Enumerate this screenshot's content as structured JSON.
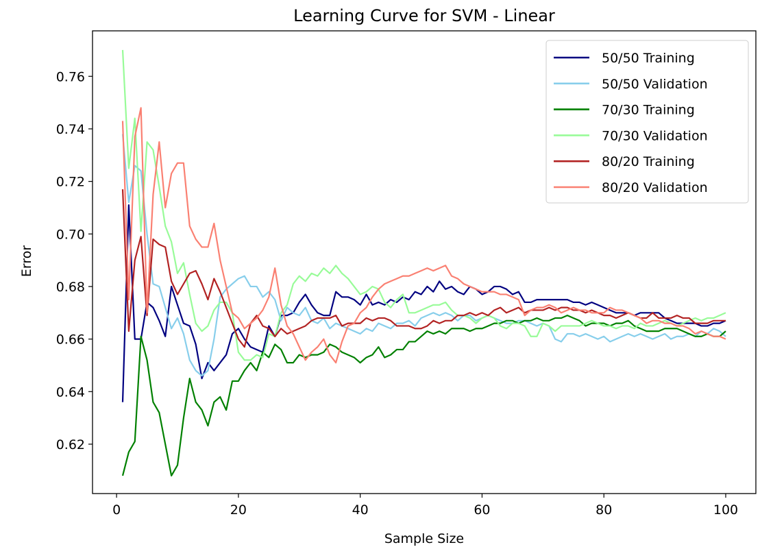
{
  "chart_data": {
    "type": "line",
    "title": "Learning Curve for SVM - Linear",
    "xlabel": "Sample Size",
    "ylabel": "Error",
    "xlim": [
      -3.95,
      104.95
    ],
    "ylim": [
      0.6012,
      0.7773
    ],
    "xticks": [
      0,
      20,
      40,
      60,
      80,
      100
    ],
    "yticks": [
      0.62,
      0.64,
      0.66,
      0.68,
      0.7,
      0.72,
      0.74,
      0.76
    ],
    "ytick_labels": [
      "0.62",
      "0.64",
      "0.66",
      "0.68",
      "0.70",
      "0.72",
      "0.74",
      "0.76"
    ],
    "grid": false,
    "legend_position": "top-right",
    "series": [
      {
        "name": "50/50 Training",
        "color": "#000080",
        "x": [
          1,
          2,
          3,
          4,
          5,
          6,
          7,
          8,
          9,
          10,
          11,
          12,
          13,
          14,
          15,
          16,
          17,
          18,
          19,
          20,
          21,
          22,
          23,
          24,
          25,
          26,
          27,
          28,
          29,
          30,
          31,
          32,
          33,
          34,
          35,
          36,
          37,
          38,
          39,
          40,
          41,
          42,
          43,
          44,
          45,
          46,
          47,
          48,
          49,
          50,
          51,
          52,
          53,
          54,
          55,
          56,
          57,
          58,
          59,
          60,
          61,
          62,
          63,
          64,
          65,
          66,
          67,
          68,
          69,
          70,
          71,
          72,
          73,
          74,
          75,
          76,
          77,
          78,
          79,
          80,
          81,
          82,
          83,
          84,
          85,
          86,
          87,
          88,
          89,
          90,
          91,
          92,
          93,
          94,
          95,
          96,
          97,
          98,
          99,
          100
        ],
        "y": [
          0.636,
          0.711,
          0.66,
          0.66,
          0.674,
          0.672,
          0.667,
          0.661,
          0.68,
          0.673,
          0.666,
          0.665,
          0.658,
          0.645,
          0.651,
          0.648,
          0.651,
          0.654,
          0.662,
          0.664,
          0.66,
          0.657,
          0.656,
          0.655,
          0.665,
          0.661,
          0.669,
          0.669,
          0.67,
          0.674,
          0.677,
          0.673,
          0.67,
          0.669,
          0.669,
          0.678,
          0.676,
          0.676,
          0.675,
          0.673,
          0.677,
          0.673,
          0.674,
          0.673,
          0.675,
          0.674,
          0.676,
          0.675,
          0.678,
          0.677,
          0.68,
          0.678,
          0.682,
          0.679,
          0.68,
          0.678,
          0.677,
          0.68,
          0.679,
          0.677,
          0.678,
          0.68,
          0.68,
          0.679,
          0.677,
          0.678,
          0.674,
          0.674,
          0.675,
          0.675,
          0.675,
          0.675,
          0.675,
          0.675,
          0.674,
          0.674,
          0.673,
          0.674,
          0.673,
          0.672,
          0.671,
          0.67,
          0.67,
          0.67,
          0.669,
          0.67,
          0.67,
          0.67,
          0.67,
          0.668,
          0.667,
          0.666,
          0.666,
          0.666,
          0.666,
          0.665,
          0.665,
          0.666,
          0.666,
          0.667
        ]
      },
      {
        "name": "50/50 Validation",
        "color": "#87CEEB",
        "x": [
          1,
          2,
          3,
          4,
          5,
          6,
          7,
          8,
          9,
          10,
          11,
          12,
          13,
          14,
          15,
          16,
          17,
          18,
          19,
          20,
          21,
          22,
          23,
          24,
          25,
          26,
          27,
          28,
          29,
          30,
          31,
          32,
          33,
          34,
          35,
          36,
          37,
          38,
          39,
          40,
          41,
          42,
          43,
          44,
          45,
          46,
          47,
          48,
          49,
          50,
          51,
          52,
          53,
          54,
          55,
          56,
          57,
          58,
          59,
          60,
          61,
          62,
          63,
          64,
          65,
          66,
          67,
          68,
          69,
          70,
          71,
          72,
          73,
          74,
          75,
          76,
          77,
          78,
          79,
          80,
          81,
          82,
          83,
          84,
          85,
          86,
          87,
          88,
          89,
          90,
          91,
          92,
          93,
          94,
          95,
          96,
          97,
          98,
          99,
          100
        ],
        "y": [
          0.738,
          0.712,
          0.726,
          0.724,
          0.7,
          0.681,
          0.68,
          0.672,
          0.664,
          0.668,
          0.662,
          0.652,
          0.648,
          0.646,
          0.648,
          0.66,
          0.676,
          0.679,
          0.681,
          0.683,
          0.684,
          0.68,
          0.68,
          0.676,
          0.678,
          0.675,
          0.667,
          0.672,
          0.67,
          0.669,
          0.672,
          0.667,
          0.666,
          0.668,
          0.664,
          0.666,
          0.665,
          0.664,
          0.663,
          0.662,
          0.664,
          0.663,
          0.666,
          0.665,
          0.664,
          0.666,
          0.666,
          0.667,
          0.665,
          0.668,
          0.669,
          0.67,
          0.669,
          0.67,
          0.669,
          0.667,
          0.669,
          0.669,
          0.667,
          0.668,
          0.669,
          0.668,
          0.667,
          0.666,
          0.666,
          0.667,
          0.667,
          0.666,
          0.665,
          0.666,
          0.665,
          0.66,
          0.659,
          0.662,
          0.662,
          0.661,
          0.662,
          0.661,
          0.66,
          0.661,
          0.659,
          0.66,
          0.661,
          0.662,
          0.661,
          0.662,
          0.661,
          0.66,
          0.661,
          0.662,
          0.66,
          0.661,
          0.661,
          0.662,
          0.661,
          0.663,
          0.662,
          0.664,
          0.663,
          0.661
        ]
      },
      {
        "name": "70/30 Training",
        "color": "#008000",
        "x": [
          1,
          2,
          3,
          4,
          5,
          6,
          7,
          8,
          9,
          10,
          11,
          12,
          13,
          14,
          15,
          16,
          17,
          18,
          19,
          20,
          21,
          22,
          23,
          24,
          25,
          26,
          27,
          28,
          29,
          30,
          31,
          32,
          33,
          34,
          35,
          36,
          37,
          38,
          39,
          40,
          41,
          42,
          43,
          44,
          45,
          46,
          47,
          48,
          49,
          50,
          51,
          52,
          53,
          54,
          55,
          56,
          57,
          58,
          59,
          60,
          61,
          62,
          63,
          64,
          65,
          66,
          67,
          68,
          69,
          70,
          71,
          72,
          73,
          74,
          75,
          76,
          77,
          78,
          79,
          80,
          81,
          82,
          83,
          84,
          85,
          86,
          87,
          88,
          89,
          90,
          91,
          92,
          93,
          94,
          95,
          96,
          97,
          98,
          99,
          100
        ],
        "y": [
          0.608,
          0.617,
          0.621,
          0.661,
          0.652,
          0.636,
          0.632,
          0.62,
          0.608,
          0.612,
          0.63,
          0.645,
          0.636,
          0.633,
          0.627,
          0.636,
          0.638,
          0.633,
          0.644,
          0.644,
          0.648,
          0.651,
          0.648,
          0.655,
          0.653,
          0.658,
          0.656,
          0.651,
          0.651,
          0.654,
          0.653,
          0.654,
          0.654,
          0.655,
          0.658,
          0.657,
          0.655,
          0.654,
          0.653,
          0.651,
          0.653,
          0.654,
          0.657,
          0.653,
          0.654,
          0.656,
          0.656,
          0.659,
          0.659,
          0.661,
          0.663,
          0.662,
          0.663,
          0.662,
          0.664,
          0.664,
          0.664,
          0.663,
          0.664,
          0.664,
          0.665,
          0.666,
          0.666,
          0.667,
          0.667,
          0.666,
          0.667,
          0.667,
          0.668,
          0.667,
          0.667,
          0.668,
          0.668,
          0.669,
          0.668,
          0.667,
          0.665,
          0.666,
          0.666,
          0.666,
          0.665,
          0.666,
          0.666,
          0.667,
          0.665,
          0.664,
          0.663,
          0.663,
          0.663,
          0.664,
          0.664,
          0.664,
          0.663,
          0.662,
          0.661,
          0.661,
          0.662,
          0.661,
          0.661,
          0.663
        ]
      },
      {
        "name": "70/30 Validation",
        "color": "#98FB98",
        "x": [
          1,
          2,
          3,
          4,
          5,
          6,
          7,
          8,
          9,
          10,
          11,
          12,
          13,
          14,
          15,
          16,
          17,
          18,
          19,
          20,
          21,
          22,
          23,
          24,
          25,
          26,
          27,
          28,
          29,
          30,
          31,
          32,
          33,
          34,
          35,
          36,
          37,
          38,
          39,
          40,
          41,
          42,
          43,
          44,
          45,
          46,
          47,
          48,
          49,
          50,
          51,
          52,
          53,
          54,
          55,
          56,
          57,
          58,
          59,
          60,
          61,
          62,
          63,
          64,
          65,
          66,
          67,
          68,
          69,
          70,
          71,
          72,
          73,
          74,
          75,
          76,
          77,
          78,
          79,
          80,
          81,
          82,
          83,
          84,
          85,
          86,
          87,
          88,
          89,
          90,
          91,
          92,
          93,
          94,
          95,
          96,
          97,
          98,
          99,
          100
        ],
        "y": [
          0.77,
          0.725,
          0.744,
          0.701,
          0.735,
          0.732,
          0.718,
          0.703,
          0.697,
          0.685,
          0.689,
          0.677,
          0.666,
          0.663,
          0.665,
          0.671,
          0.674,
          0.674,
          0.67,
          0.655,
          0.652,
          0.652,
          0.654,
          0.653,
          0.662,
          0.661,
          0.67,
          0.673,
          0.681,
          0.684,
          0.682,
          0.685,
          0.684,
          0.687,
          0.685,
          0.688,
          0.685,
          0.683,
          0.68,
          0.677,
          0.678,
          0.68,
          0.679,
          0.674,
          0.672,
          0.675,
          0.677,
          0.67,
          0.67,
          0.671,
          0.672,
          0.673,
          0.673,
          0.674,
          0.671,
          0.669,
          0.669,
          0.668,
          0.666,
          0.668,
          0.669,
          0.668,
          0.665,
          0.664,
          0.666,
          0.666,
          0.665,
          0.661,
          0.661,
          0.666,
          0.665,
          0.663,
          0.665,
          0.665,
          0.665,
          0.665,
          0.666,
          0.667,
          0.666,
          0.665,
          0.665,
          0.664,
          0.665,
          0.665,
          0.664,
          0.666,
          0.665,
          0.665,
          0.666,
          0.667,
          0.666,
          0.665,
          0.666,
          0.667,
          0.668,
          0.667,
          0.668,
          0.668,
          0.669,
          0.67
        ]
      },
      {
        "name": "80/20 Training",
        "color": "#B22222",
        "x": [
          1,
          2,
          3,
          4,
          5,
          6,
          7,
          8,
          9,
          10,
          11,
          12,
          13,
          14,
          15,
          16,
          17,
          18,
          19,
          20,
          21,
          22,
          23,
          24,
          25,
          26,
          27,
          28,
          29,
          30,
          31,
          32,
          33,
          34,
          35,
          36,
          37,
          38,
          39,
          40,
          41,
          42,
          43,
          44,
          45,
          46,
          47,
          48,
          49,
          50,
          51,
          52,
          53,
          54,
          55,
          56,
          57,
          58,
          59,
          60,
          61,
          62,
          63,
          64,
          65,
          66,
          67,
          68,
          69,
          70,
          71,
          72,
          73,
          74,
          75,
          76,
          77,
          78,
          79,
          80,
          81,
          82,
          83,
          84,
          85,
          86,
          87,
          88,
          89,
          90,
          91,
          92,
          93,
          94,
          95,
          96,
          97,
          98,
          99,
          100
        ],
        "y": [
          0.717,
          0.663,
          0.69,
          0.699,
          0.669,
          0.698,
          0.696,
          0.695,
          0.682,
          0.677,
          0.681,
          0.685,
          0.686,
          0.681,
          0.675,
          0.683,
          0.678,
          0.672,
          0.666,
          0.66,
          0.657,
          0.666,
          0.669,
          0.665,
          0.664,
          0.661,
          0.664,
          0.662,
          0.663,
          0.664,
          0.665,
          0.667,
          0.668,
          0.668,
          0.668,
          0.669,
          0.665,
          0.666,
          0.666,
          0.666,
          0.668,
          0.667,
          0.668,
          0.668,
          0.667,
          0.665,
          0.665,
          0.665,
          0.664,
          0.664,
          0.665,
          0.667,
          0.666,
          0.667,
          0.667,
          0.669,
          0.669,
          0.67,
          0.669,
          0.67,
          0.669,
          0.671,
          0.672,
          0.67,
          0.671,
          0.672,
          0.67,
          0.671,
          0.671,
          0.671,
          0.672,
          0.671,
          0.672,
          0.672,
          0.671,
          0.671,
          0.67,
          0.671,
          0.67,
          0.669,
          0.669,
          0.668,
          0.669,
          0.67,
          0.669,
          0.668,
          0.668,
          0.67,
          0.668,
          0.668,
          0.668,
          0.669,
          0.668,
          0.668,
          0.666,
          0.666,
          0.666,
          0.667,
          0.667,
          0.667
        ]
      },
      {
        "name": "80/20 Validation",
        "color": "#FA8072",
        "x": [
          1,
          2,
          3,
          4,
          5,
          6,
          7,
          8,
          9,
          10,
          11,
          12,
          13,
          14,
          15,
          16,
          17,
          18,
          19,
          20,
          21,
          22,
          23,
          24,
          25,
          26,
          27,
          28,
          29,
          30,
          31,
          32,
          33,
          34,
          35,
          36,
          37,
          38,
          39,
          40,
          41,
          42,
          43,
          44,
          45,
          46,
          47,
          48,
          49,
          50,
          51,
          52,
          53,
          54,
          55,
          56,
          57,
          58,
          59,
          60,
          61,
          62,
          63,
          64,
          65,
          66,
          67,
          68,
          69,
          70,
          71,
          72,
          73,
          74,
          75,
          76,
          77,
          78,
          79,
          80,
          81,
          82,
          83,
          84,
          85,
          86,
          87,
          88,
          89,
          90,
          91,
          92,
          93,
          94,
          95,
          96,
          97,
          98,
          99,
          100
        ],
        "y": [
          0.743,
          0.675,
          0.737,
          0.748,
          0.67,
          0.715,
          0.735,
          0.71,
          0.723,
          0.727,
          0.727,
          0.703,
          0.698,
          0.695,
          0.695,
          0.704,
          0.69,
          0.68,
          0.67,
          0.668,
          0.664,
          0.666,
          0.668,
          0.671,
          0.676,
          0.687,
          0.673,
          0.665,
          0.662,
          0.657,
          0.652,
          0.655,
          0.657,
          0.66,
          0.654,
          0.651,
          0.659,
          0.665,
          0.666,
          0.67,
          0.672,
          0.676,
          0.679,
          0.681,
          0.682,
          0.683,
          0.684,
          0.684,
          0.685,
          0.686,
          0.687,
          0.686,
          0.687,
          0.688,
          0.684,
          0.683,
          0.681,
          0.68,
          0.679,
          0.678,
          0.678,
          0.678,
          0.677,
          0.677,
          0.676,
          0.675,
          0.669,
          0.671,
          0.672,
          0.672,
          0.673,
          0.672,
          0.67,
          0.671,
          0.672,
          0.671,
          0.671,
          0.67,
          0.67,
          0.67,
          0.672,
          0.671,
          0.671,
          0.67,
          0.669,
          0.668,
          0.666,
          0.667,
          0.667,
          0.666,
          0.666,
          0.665,
          0.665,
          0.664,
          0.662,
          0.663,
          0.662,
          0.661,
          0.661,
          0.66
        ]
      }
    ]
  }
}
